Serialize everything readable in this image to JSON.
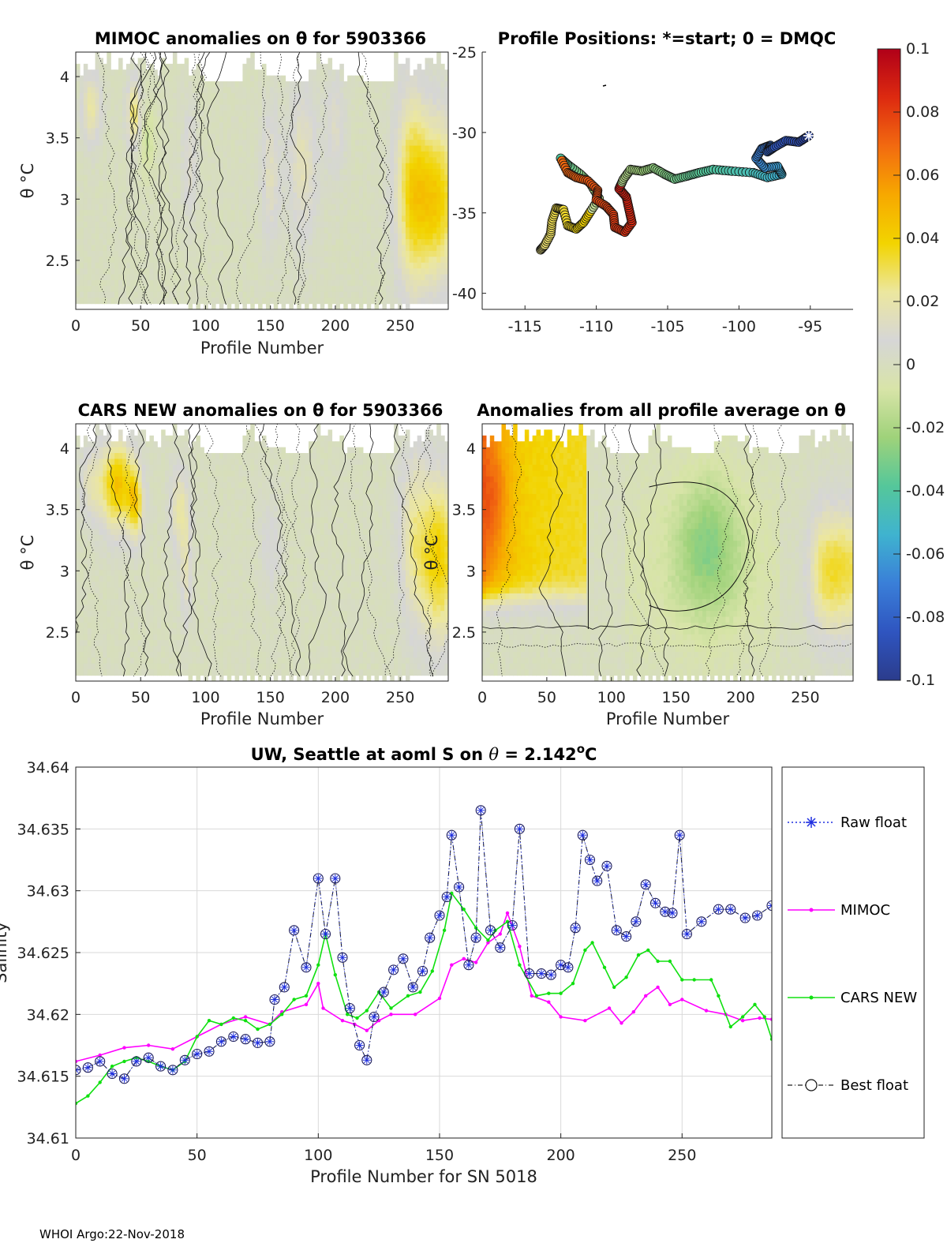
{
  "footer": "WHOI Argo:22-Nov-2018",
  "colors": {
    "raw": "#1f2fe0",
    "mimoc": "#ff00ff",
    "cars": "#10e010",
    "best": "#1a1a5a",
    "field": "#d6d6d6",
    "colormap": [
      "#2b3c8c",
      "#2f55c0",
      "#3a7fd8",
      "#3fb3cf",
      "#55c79a",
      "#9fd27a",
      "#d8e4a8",
      "#d6d6d6",
      "#ece79e",
      "#f2d400",
      "#f7a800",
      "#f26a10",
      "#dd2a10",
      "#b00018"
    ]
  },
  "chart_data": [
    {
      "id": "mimoc_anom",
      "type": "heatmap",
      "title": "MIMOC anomalies on θ  for 5903366",
      "xlabel": "Profile Number",
      "ylabel": "θ °C",
      "xlim": [
        0,
        287
      ],
      "ylim": [
        2.1,
        4.2
      ],
      "xticks": [
        "0",
        "50",
        "100",
        "150",
        "200",
        "250"
      ],
      "yticks": [
        "2.5",
        "3",
        "3.5",
        "4"
      ]
    },
    {
      "id": "positions",
      "type": "scatter",
      "title": "Profile Positions: *=start; 0 = DMQC",
      "xlim": [
        -118,
        -92
      ],
      "ylim": [
        -41,
        -25
      ],
      "xticks": [
        "-115",
        "-110",
        "-105",
        "-100",
        "-95"
      ],
      "yticks": [
        "-25",
        "-30",
        "-35",
        "-40"
      ],
      "track": [
        [
          -95.1,
          -30.2
        ],
        [
          -95.8,
          -30.6
        ],
        [
          -96.7,
          -30.5
        ],
        [
          -97.5,
          -30.9
        ],
        [
          -98.0,
          -31.2
        ],
        [
          -97.8,
          -30.8
        ],
        [
          -98.4,
          -31.0
        ],
        [
          -98.8,
          -31.6
        ],
        [
          -98.2,
          -32.2
        ],
        [
          -97.3,
          -32.1
        ],
        [
          -97.0,
          -32.6
        ],
        [
          -98.0,
          -32.8
        ],
        [
          -99.0,
          -32.5
        ],
        [
          -100.5,
          -32.4
        ],
        [
          -101.8,
          -32.3
        ],
        [
          -102.8,
          -32.5
        ],
        [
          -103.6,
          -32.7
        ],
        [
          -104.5,
          -32.9
        ],
        [
          -105.2,
          -32.6
        ],
        [
          -106.0,
          -32.2
        ],
        [
          -106.8,
          -32.4
        ],
        [
          -107.6,
          -32.3
        ],
        [
          -108.1,
          -32.9
        ],
        [
          -108.4,
          -33.5
        ],
        [
          -107.9,
          -34.0
        ],
        [
          -107.7,
          -34.8
        ],
        [
          -107.5,
          -35.6
        ],
        [
          -108.0,
          -36.2
        ],
        [
          -108.7,
          -35.9
        ],
        [
          -108.8,
          -35.1
        ],
        [
          -109.3,
          -34.6
        ],
        [
          -110.0,
          -34.2
        ],
        [
          -109.9,
          -33.6
        ],
        [
          -110.6,
          -33.0
        ],
        [
          -111.4,
          -32.8
        ],
        [
          -112.0,
          -32.5
        ],
        [
          -112.5,
          -31.6
        ],
        [
          -112.0,
          -32.0
        ],
        [
          -111.1,
          -32.6
        ],
        [
          -110.4,
          -33.2
        ],
        [
          -109.8,
          -34.1
        ],
        [
          -110.4,
          -34.9
        ],
        [
          -110.9,
          -35.6
        ],
        [
          -111.4,
          -36.0
        ],
        [
          -112.0,
          -35.8
        ],
        [
          -112.3,
          -34.8
        ],
        [
          -112.8,
          -34.7
        ],
        [
          -113.1,
          -35.5
        ],
        [
          -113.2,
          -36.3
        ],
        [
          -113.6,
          -37.0
        ],
        [
          -113.9,
          -37.3
        ]
      ]
    },
    {
      "id": "cars_anom",
      "type": "heatmap",
      "title": "CARS NEW anomalies on θ for 5903366",
      "xlabel": "Profile Number",
      "ylabel": "θ °C",
      "xlim": [
        0,
        287
      ],
      "ylim": [
        2.1,
        4.2
      ],
      "xticks": [
        "0",
        "50",
        "100",
        "150",
        "200",
        "250"
      ],
      "yticks": [
        "2.5",
        "3",
        "3.5",
        "4"
      ]
    },
    {
      "id": "avg_anom",
      "type": "heatmap",
      "title": "Anomalies from all profile average on θ",
      "xlabel": "Profile Number",
      "ylabel": "θ °C",
      "xlim": [
        0,
        287
      ],
      "ylim": [
        2.1,
        4.2
      ],
      "xticks": [
        "0",
        "50",
        "100",
        "150",
        "200",
        "250"
      ],
      "yticks": [
        "2.5",
        "3",
        "3.5",
        "4"
      ]
    },
    {
      "id": "colorbar",
      "type": "colorbar",
      "range": [
        -0.1,
        0.1
      ],
      "ticks": [
        "0.1",
        "0.08",
        "0.06",
        "0.04",
        "0.02",
        "0",
        "-0.02",
        "-0.04",
        "-0.06",
        "-0.08",
        "-0.1"
      ]
    },
    {
      "id": "salinity",
      "type": "line",
      "title": "UW, Seattle at aoml S on θ = 2.142°C",
      "title_main": "UW, Seattle at aoml S on ",
      "title_theta": "θ",
      "title_eq": " = 2.142",
      "title_deg": "o",
      "title_unit": "C",
      "xlabel": "Profile Number for SN 5018",
      "ylabel": "Salinity",
      "xlim": [
        0,
        287
      ],
      "ylim": [
        34.61,
        34.64
      ],
      "xticks": [
        "0",
        "50",
        "100",
        "150",
        "200",
        "250"
      ],
      "yticks": [
        "34.61",
        "34.615",
        "34.62",
        "34.625",
        "34.63",
        "34.635",
        "34.64"
      ],
      "grid": true,
      "legend": [
        "Raw float",
        "MIMOC",
        "CARS NEW",
        "Best float"
      ],
      "best_float": [
        [
          0,
          34.6155
        ],
        [
          5,
          34.6157
        ],
        [
          10,
          34.6162
        ],
        [
          15,
          34.6152
        ],
        [
          20,
          34.6148
        ],
        [
          25,
          34.6162
        ],
        [
          30,
          34.6165
        ],
        [
          35,
          34.6158
        ],
        [
          40,
          34.6155
        ],
        [
          45,
          34.6163
        ],
        [
          50,
          34.6168
        ],
        [
          55,
          34.617
        ],
        [
          60,
          34.6178
        ],
        [
          65,
          34.6182
        ],
        [
          70,
          34.618
        ],
        [
          75,
          34.6177
        ],
        [
          80,
          34.6178
        ],
        [
          82,
          34.6212
        ],
        [
          86,
          34.6222
        ],
        [
          90,
          34.6268
        ],
        [
          95,
          34.6238
        ],
        [
          100,
          34.631
        ],
        [
          103,
          34.6265
        ],
        [
          107,
          34.631
        ],
        [
          110,
          34.6246
        ],
        [
          113,
          34.6205
        ],
        [
          117,
          34.6175
        ],
        [
          120,
          34.6163
        ],
        [
          123,
          34.6198
        ],
        [
          127,
          34.6218
        ],
        [
          131,
          34.6236
        ],
        [
          135,
          34.6245
        ],
        [
          139,
          34.6222
        ],
        [
          143,
          34.6235
        ],
        [
          146,
          34.6262
        ],
        [
          150,
          34.628
        ],
        [
          153,
          34.6295
        ],
        [
          155,
          34.6345
        ],
        [
          158,
          34.6303
        ],
        [
          162,
          34.624
        ],
        [
          165,
          34.6262
        ],
        [
          167,
          34.6365
        ],
        [
          171,
          34.6268
        ],
        [
          175,
          34.6254
        ],
        [
          180,
          34.6272
        ],
        [
          183,
          34.635
        ],
        [
          187,
          34.6233
        ],
        [
          192,
          34.6233
        ],
        [
          196,
          34.6232
        ],
        [
          200,
          34.624
        ],
        [
          203,
          34.6238
        ],
        [
          206,
          34.627
        ],
        [
          209,
          34.6345
        ],
        [
          212,
          34.6325
        ],
        [
          215,
          34.6308
        ],
        [
          219,
          34.632
        ],
        [
          223,
          34.6268
        ],
        [
          227,
          34.6263
        ],
        [
          231,
          34.6275
        ],
        [
          235,
          34.6305
        ],
        [
          239,
          34.629
        ],
        [
          243,
          34.6283
        ],
        [
          246,
          34.6282
        ],
        [
          249,
          34.6345
        ],
        [
          252,
          34.6265
        ],
        [
          258,
          34.6275
        ],
        [
          265,
          34.6285
        ],
        [
          270,
          34.6285
        ],
        [
          276,
          34.6278
        ],
        [
          281,
          34.628
        ],
        [
          287,
          34.6288
        ]
      ],
      "mimoc": [
        [
          0,
          34.6162
        ],
        [
          10,
          34.6167
        ],
        [
          20,
          34.6173
        ],
        [
          30,
          34.6175
        ],
        [
          40,
          34.6172
        ],
        [
          50,
          34.6182
        ],
        [
          60,
          34.6192
        ],
        [
          70,
          34.6198
        ],
        [
          80,
          34.6192
        ],
        [
          85,
          34.6202
        ],
        [
          95,
          34.6208
        ],
        [
          100,
          34.6225
        ],
        [
          102,
          34.6205
        ],
        [
          110,
          34.6195
        ],
        [
          115,
          34.6192
        ],
        [
          120,
          34.6187
        ],
        [
          125,
          34.6195
        ],
        [
          130,
          34.62
        ],
        [
          140,
          34.62
        ],
        [
          150,
          34.6213
        ],
        [
          155,
          34.624
        ],
        [
          160,
          34.6245
        ],
        [
          165,
          34.6242
        ],
        [
          170,
          34.6258
        ],
        [
          175,
          34.6265
        ],
        [
          178,
          34.6282
        ],
        [
          183,
          34.6255
        ],
        [
          188,
          34.6215
        ],
        [
          195,
          34.621
        ],
        [
          200,
          34.6198
        ],
        [
          210,
          34.6195
        ],
        [
          220,
          34.6205
        ],
        [
          225,
          34.6193
        ],
        [
          230,
          34.6202
        ],
        [
          235,
          34.6215
        ],
        [
          240,
          34.6222
        ],
        [
          245,
          34.6208
        ],
        [
          250,
          34.6212
        ],
        [
          260,
          34.6203
        ],
        [
          268,
          34.62
        ],
        [
          275,
          34.6195
        ],
        [
          282,
          34.6197
        ],
        [
          287,
          34.6196
        ]
      ],
      "cars": [
        [
          0,
          34.6128
        ],
        [
          5,
          34.6134
        ],
        [
          10,
          34.6145
        ],
        [
          15,
          34.6158
        ],
        [
          20,
          34.6162
        ],
        [
          25,
          34.6165
        ],
        [
          30,
          34.6162
        ],
        [
          35,
          34.6158
        ],
        [
          40,
          34.6155
        ],
        [
          45,
          34.6162
        ],
        [
          50,
          34.6182
        ],
        [
          55,
          34.6195
        ],
        [
          60,
          34.6192
        ],
        [
          65,
          34.6197
        ],
        [
          70,
          34.6195
        ],
        [
          75,
          34.6188
        ],
        [
          80,
          34.6192
        ],
        [
          85,
          34.62
        ],
        [
          90,
          34.6212
        ],
        [
          95,
          34.6215
        ],
        [
          100,
          34.624
        ],
        [
          103,
          34.6265
        ],
        [
          107,
          34.6232
        ],
        [
          112,
          34.62
        ],
        [
          116,
          34.6197
        ],
        [
          120,
          34.6203
        ],
        [
          125,
          34.6218
        ],
        [
          130,
          34.6205
        ],
        [
          137,
          34.6215
        ],
        [
          142,
          34.6218
        ],
        [
          147,
          34.6235
        ],
        [
          152,
          34.6268
        ],
        [
          155,
          34.6298
        ],
        [
          160,
          34.6285
        ],
        [
          165,
          34.627
        ],
        [
          170,
          34.626
        ],
        [
          173,
          34.6268
        ],
        [
          178,
          34.6275
        ],
        [
          183,
          34.624
        ],
        [
          190,
          34.6215
        ],
        [
          195,
          34.6217
        ],
        [
          200,
          34.6217
        ],
        [
          205,
          34.6225
        ],
        [
          210,
          34.6252
        ],
        [
          213,
          34.6258
        ],
        [
          218,
          34.6238
        ],
        [
          222,
          34.6222
        ],
        [
          227,
          34.623
        ],
        [
          232,
          34.6248
        ],
        [
          236,
          34.6252
        ],
        [
          240,
          34.6243
        ],
        [
          245,
          34.6243
        ],
        [
          250,
          34.6228
        ],
        [
          255,
          34.6228
        ],
        [
          262,
          34.6228
        ],
        [
          265,
          34.6215
        ],
        [
          270,
          34.619
        ],
        [
          275,
          34.6198
        ],
        [
          280,
          34.6208
        ],
        [
          284,
          34.6198
        ],
        [
          287,
          34.618
        ]
      ]
    }
  ]
}
